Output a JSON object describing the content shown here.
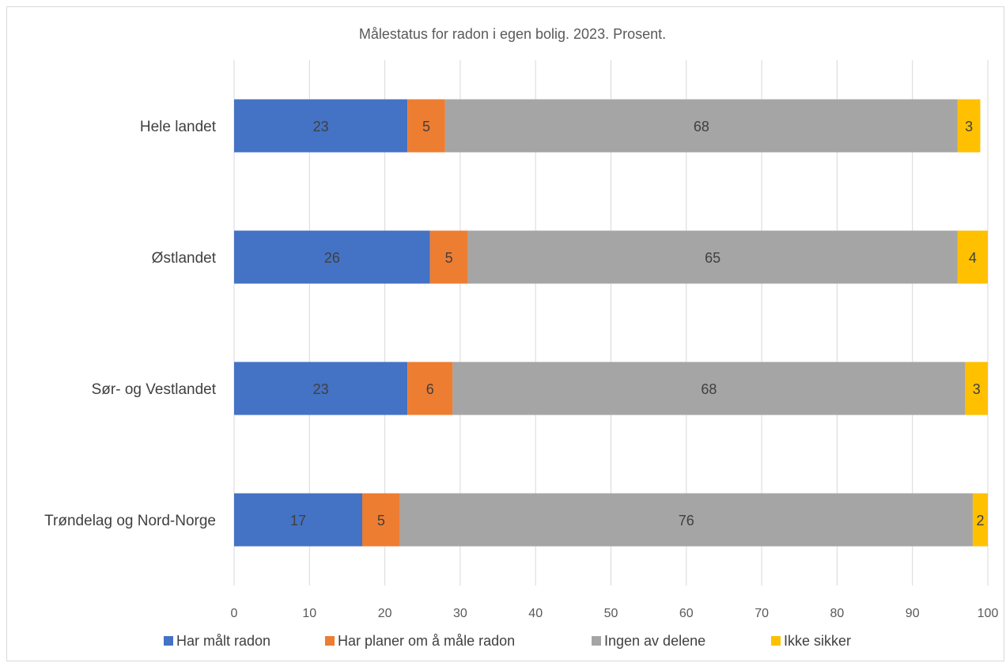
{
  "chart_data": {
    "type": "bar",
    "orientation": "horizontal",
    "stacked": true,
    "title": "Målestatus for radon i egen bolig. 2023. Prosent.",
    "xlabel": "",
    "ylabel": "",
    "xlim": [
      0,
      100
    ],
    "x_ticks": [
      0,
      10,
      20,
      30,
      40,
      50,
      60,
      70,
      80,
      90,
      100
    ],
    "grid": "vertical",
    "legend_position": "bottom",
    "categories": [
      "Hele landet",
      "Østlandet",
      "Sør- og Vestlandet",
      "Trøndelag og Nord-Norge"
    ],
    "series": [
      {
        "name": "Har målt radon",
        "color": "#4472C4",
        "values": [
          23,
          26,
          23,
          17
        ]
      },
      {
        "name": "Har planer om å måle radon",
        "color": "#ED7D31",
        "values": [
          5,
          5,
          6,
          5
        ]
      },
      {
        "name": "Ingen av delene",
        "color": "#A5A5A5",
        "values": [
          68,
          65,
          68,
          76
        ]
      },
      {
        "name": "Ikke sikker",
        "color": "#FFC000",
        "values": [
          3,
          4,
          3,
          2
        ]
      }
    ]
  }
}
